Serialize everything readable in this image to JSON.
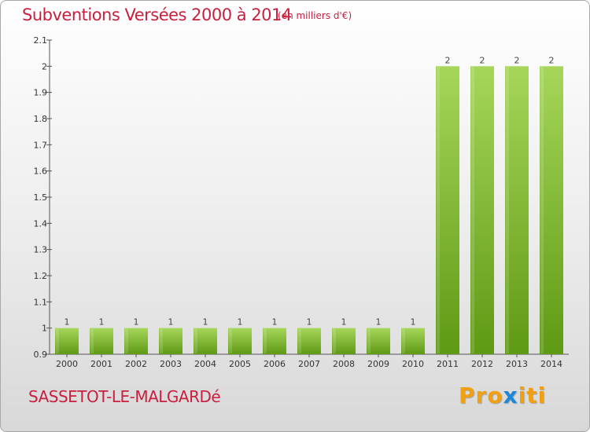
{
  "header": {
    "title": "Subventions Versées 2000 à 2014",
    "unit": "(en milliers d'€)"
  },
  "footer": {
    "commune": "SASSETOT-LE-MALGARDé",
    "brand_part1": "Pro",
    "brand_part2": "x",
    "brand_part3": "i",
    "brand_part4": "ti"
  },
  "colors": {
    "title": "#c8203e",
    "bar_light": "#9fd24a",
    "bar_dark": "#5f9a14",
    "brand_orange": "#f0a010",
    "brand_blue": "#1e88d8"
  },
  "chart_data": {
    "type": "bar",
    "title": "Subventions Versées 2000 à 2014",
    "categories": [
      "2000",
      "2001",
      "2002",
      "2003",
      "2004",
      "2005",
      "2006",
      "2007",
      "2008",
      "2009",
      "2010",
      "2011",
      "2012",
      "2013",
      "2014"
    ],
    "values": [
      1,
      1,
      1,
      1,
      1,
      1,
      1,
      1,
      1,
      1,
      1,
      2,
      2,
      2,
      2
    ],
    "data_labels": [
      "1",
      "1",
      "1",
      "1",
      "1",
      "1",
      "1",
      "1",
      "1",
      "1",
      "1",
      "2",
      "2",
      "2",
      "2"
    ],
    "yticks": [
      "0.9",
      "1",
      "1.1",
      "1.2",
      "1.3",
      "1.4",
      "1.5",
      "1.6",
      "1.7",
      "1.8",
      "1.9",
      "2",
      "2.1"
    ],
    "ylim": [
      0.9,
      2.1
    ],
    "grid": false,
    "legend": "none"
  }
}
